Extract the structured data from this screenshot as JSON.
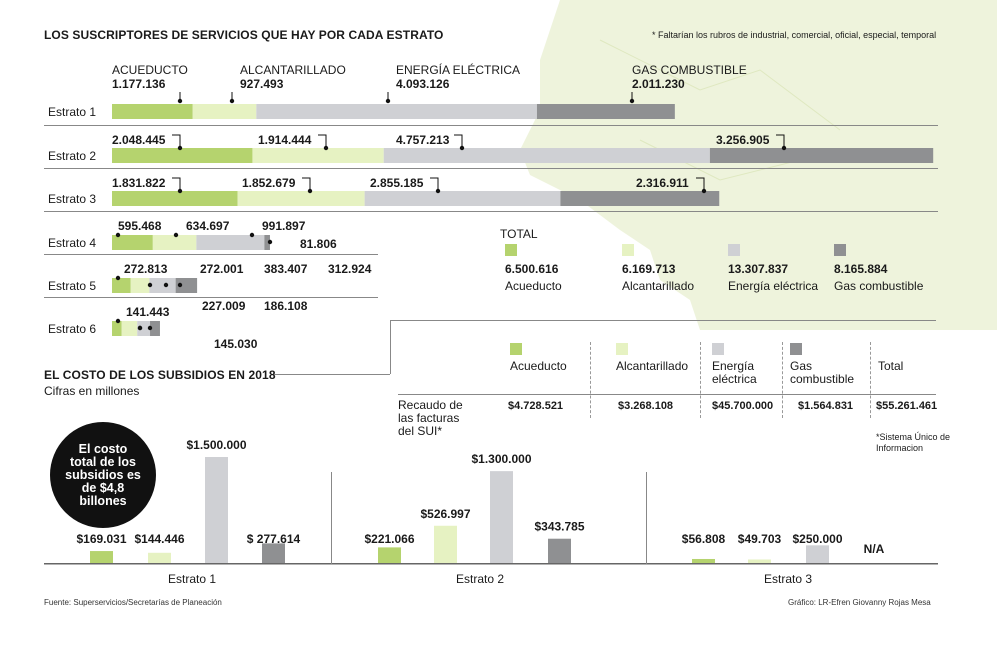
{
  "title": "LOS SUSCRIPTORES DE SERVICIOS QUE HAY POR CADA ESTRATO",
  "note": "* Faltarían los rubros de industrial, comercial, oficial, especial, temporal",
  "colors": {
    "acueducto": "#b5d36e",
    "alcantarillado": "#e6f2c2",
    "energia": "#cfd0d4",
    "gas": "#8f9092",
    "map": "#eef3dc",
    "map_line": "#dfe8c0"
  },
  "series_labels": [
    "ACUEDUCTO",
    "ALCANTARILLADO",
    "ENERGÍA ELÉCTRICA",
    "GAS COMBUSTIBLE"
  ],
  "row_labels": [
    "Estrato 1",
    "Estrato 2",
    "Estrato 3",
    "Estrato 4",
    "Estrato 5",
    "Estrato 6"
  ],
  "subscribers": [
    {
      "label": "1.177.136",
      "sublabels": [
        "1.177.136",
        "927.493",
        "4.093.126",
        "2.011.230"
      ]
    },
    {
      "label": "",
      "sublabels": [
        "2.048.445",
        "1.914.444",
        "4.757.213",
        "3.256.905"
      ]
    },
    {
      "label": "",
      "sublabels": [
        "1.831.822",
        "1.852.679",
        "2.855.185",
        "2.316.911"
      ]
    },
    {
      "label": "",
      "sublabels": [
        "595.468",
        "634.697",
        "991.897",
        "81.806"
      ]
    },
    {
      "label": "",
      "sublabels": [
        "272.813",
        "272.001",
        "383.407",
        "312.924"
      ]
    },
    {
      "label": "",
      "sublabels": [
        "141.443",
        "227.009",
        "186.108",
        "145.030"
      ]
    }
  ],
  "chart_data": [
    {
      "type": "bar",
      "title": "LOS SUSCRIPTORES DE SERVICIOS QUE HAY POR CADA ESTRATO",
      "stacked": true,
      "orientation": "horizontal",
      "categories": [
        "Estrato 1",
        "Estrato 2",
        "Estrato 3",
        "Estrato 4",
        "Estrato 5",
        "Estrato 6"
      ],
      "series": [
        {
          "name": "ACUEDUCTO",
          "values": [
            1177136,
            2048445,
            1831822,
            595468,
            272813,
            141443
          ]
        },
        {
          "name": "ALCANTARILLADO",
          "values": [
            927493,
            1914444,
            1852679,
            634697,
            272001,
            227009
          ]
        },
        {
          "name": "ENERGÍA ELÉCTRICA",
          "values": [
            4093126,
            4757213,
            2855185,
            991897,
            383407,
            186108
          ]
        },
        {
          "name": "GAS COMBUSTIBLE",
          "values": [
            2011230,
            3256905,
            2316911,
            81806,
            312924,
            145030
          ]
        }
      ],
      "xlim": [
        0,
        12000000
      ]
    },
    {
      "type": "bar",
      "title": "EL COSTO DE LOS SUBSIDIOS EN 2018",
      "subtitle": "Cifras en millones",
      "categories": [
        "Estrato 1",
        "Estrato 2",
        "Estrato 3"
      ],
      "series": [
        {
          "name": "Acueducto",
          "values": [
            169031,
            221066,
            56808
          ],
          "labels": [
            "$169.031",
            "$221.066",
            "$56.808"
          ]
        },
        {
          "name": "Alcantarillado",
          "values": [
            144446,
            526997,
            49703
          ],
          "labels": [
            "$144.446",
            "$526.997",
            "$49.703"
          ]
        },
        {
          "name": "Energía eléctrica",
          "values": [
            1500000,
            1300000,
            250000
          ],
          "labels": [
            "$1.500.000",
            "$1.300.000",
            "$250.000"
          ]
        },
        {
          "name": "Gas combustible",
          "values": [
            277614,
            343785,
            null
          ],
          "labels": [
            "$ 277.614",
            "$343.785",
            "N/A"
          ]
        }
      ],
      "ylim": [
        0,
        1500000
      ]
    }
  ],
  "totals": {
    "heading": "TOTAL",
    "items": [
      {
        "value": "6.500.616",
        "label": "Acueducto"
      },
      {
        "value": "6.169.713",
        "label": "Alcantarillado"
      },
      {
        "value": "13.307.837",
        "label": "Energía eléctrica"
      },
      {
        "value": "8.165.884",
        "label": "Gas combustible"
      }
    ]
  },
  "table": {
    "headers": [
      "Acueducto",
      "Alcantarillado",
      "Energía eléctrica",
      "Gas combustible",
      "Total"
    ],
    "row_label": "Recaudo de las facturas del SUI*",
    "values": [
      "$4.728.521",
      "$3.268.108",
      "$45.700.000",
      "$1.564.831",
      "$55.261.461"
    ],
    "footnote": "*Sistema Único de Informacion"
  },
  "subsidies": {
    "title": "EL COSTO DE LOS SUBSIDIOS EN 2018",
    "subtitle": "Cifras en millones",
    "badge_lines": [
      "El costo",
      "total de los",
      "subsidios es",
      "de $4,8",
      "billones"
    ],
    "groups": [
      "Estrato 1",
      "Estrato 2",
      "Estrato 3"
    ]
  },
  "footer": {
    "source": "Fuente: Superservicios/Secretarías de Planeación",
    "credit": "Gráfico: LR-Efren Giovanny Rojas Mesa"
  }
}
